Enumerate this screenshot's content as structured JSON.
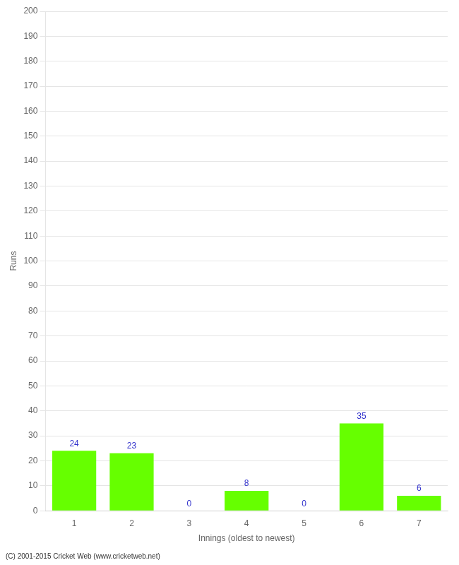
{
  "chart_data": {
    "type": "bar",
    "categories": [
      "1",
      "2",
      "3",
      "4",
      "5",
      "6",
      "7"
    ],
    "values": [
      24,
      23,
      0,
      8,
      0,
      35,
      6
    ],
    "color": "#66ff00",
    "xlabel": "Innings (oldest to newest)",
    "ylabel": "Runs",
    "ylim": [
      0,
      200
    ],
    "yticks": [
      0,
      10,
      20,
      30,
      40,
      50,
      60,
      70,
      80,
      90,
      100,
      110,
      120,
      130,
      140,
      150,
      160,
      170,
      180,
      190,
      200
    ],
    "grid": true,
    "data_labels": true,
    "footer": "(C) 2001-2015 Cricket Web (www.cricketweb.net)"
  }
}
